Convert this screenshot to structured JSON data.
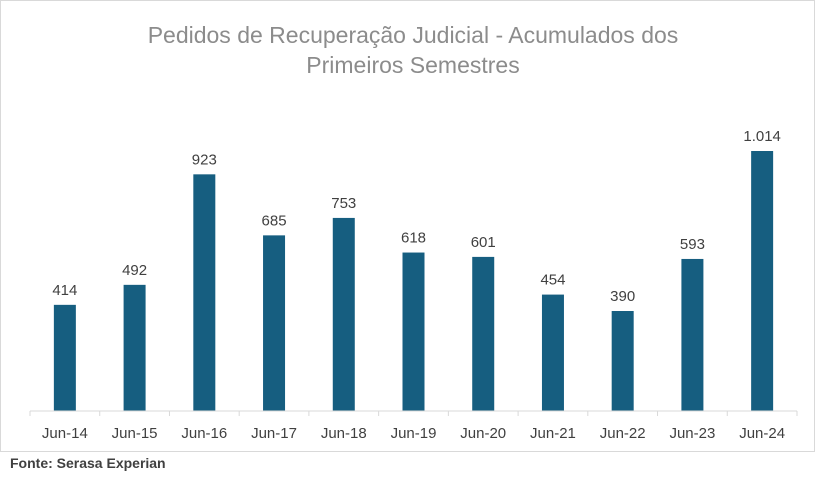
{
  "chart_data": {
    "type": "bar",
    "title_lines": [
      "Pedidos de Recuperação Judicial - Acumulados dos",
      "Primeiros Semestres"
    ],
    "categories": [
      "Jun-14",
      "Jun-15",
      "Jun-16",
      "Jun-17",
      "Jun-18",
      "Jun-19",
      "Jun-20",
      "Jun-21",
      "Jun-22",
      "Jun-23",
      "Jun-24"
    ],
    "values": [
      414,
      492,
      923,
      685,
      753,
      618,
      601,
      454,
      390,
      593,
      1014
    ],
    "value_labels": [
      "414",
      "492",
      "923",
      "685",
      "753",
      "618",
      "601",
      "454",
      "390",
      "593",
      "1.014"
    ],
    "xlabel": "",
    "ylabel": "",
    "ylim": [
      0,
      1014
    ],
    "grid": false,
    "legend": "none",
    "bar_color": "#165e80"
  },
  "source": "Fonte: Serasa Experian"
}
